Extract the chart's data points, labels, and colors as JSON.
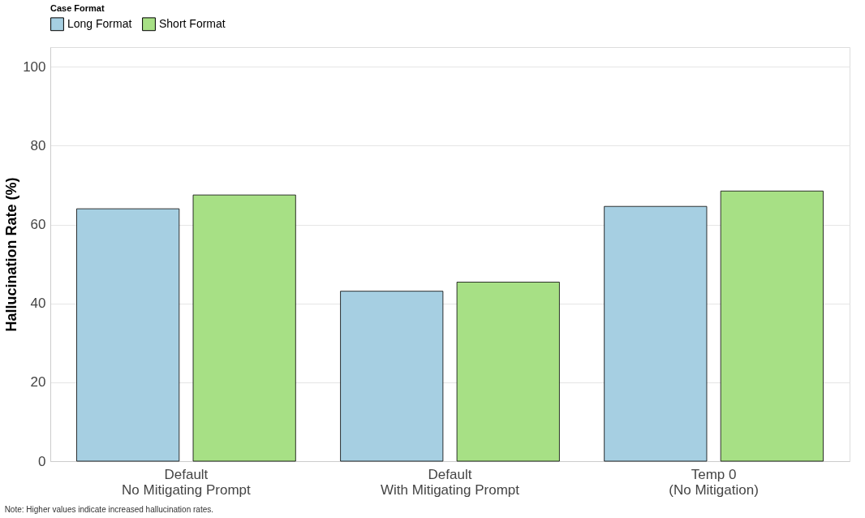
{
  "chart_data": {
    "type": "bar",
    "ylabel": "Hallucination Rate (%)",
    "legend_title": "Case Format",
    "legend": "top",
    "categories": [
      "Default\nNo Mitigating Prompt",
      "Default\nWith Mitigating Prompt",
      "Temp 0\n(No Mitigation)"
    ],
    "series": [
      {
        "name": "Long Format",
        "color": "#a6cfe2",
        "values": [
          64.0,
          43.1,
          64.6
        ]
      },
      {
        "name": "Short Format",
        "color": "#a7e085",
        "values": [
          67.5,
          45.4,
          68.5
        ]
      }
    ],
    "ylim": [
      0,
      105
    ],
    "yticks": [
      0,
      20,
      40,
      60,
      80,
      100
    ],
    "grid": "y",
    "annotations": [
      "Note: Higher values indicate increased hallucination rates."
    ]
  }
}
